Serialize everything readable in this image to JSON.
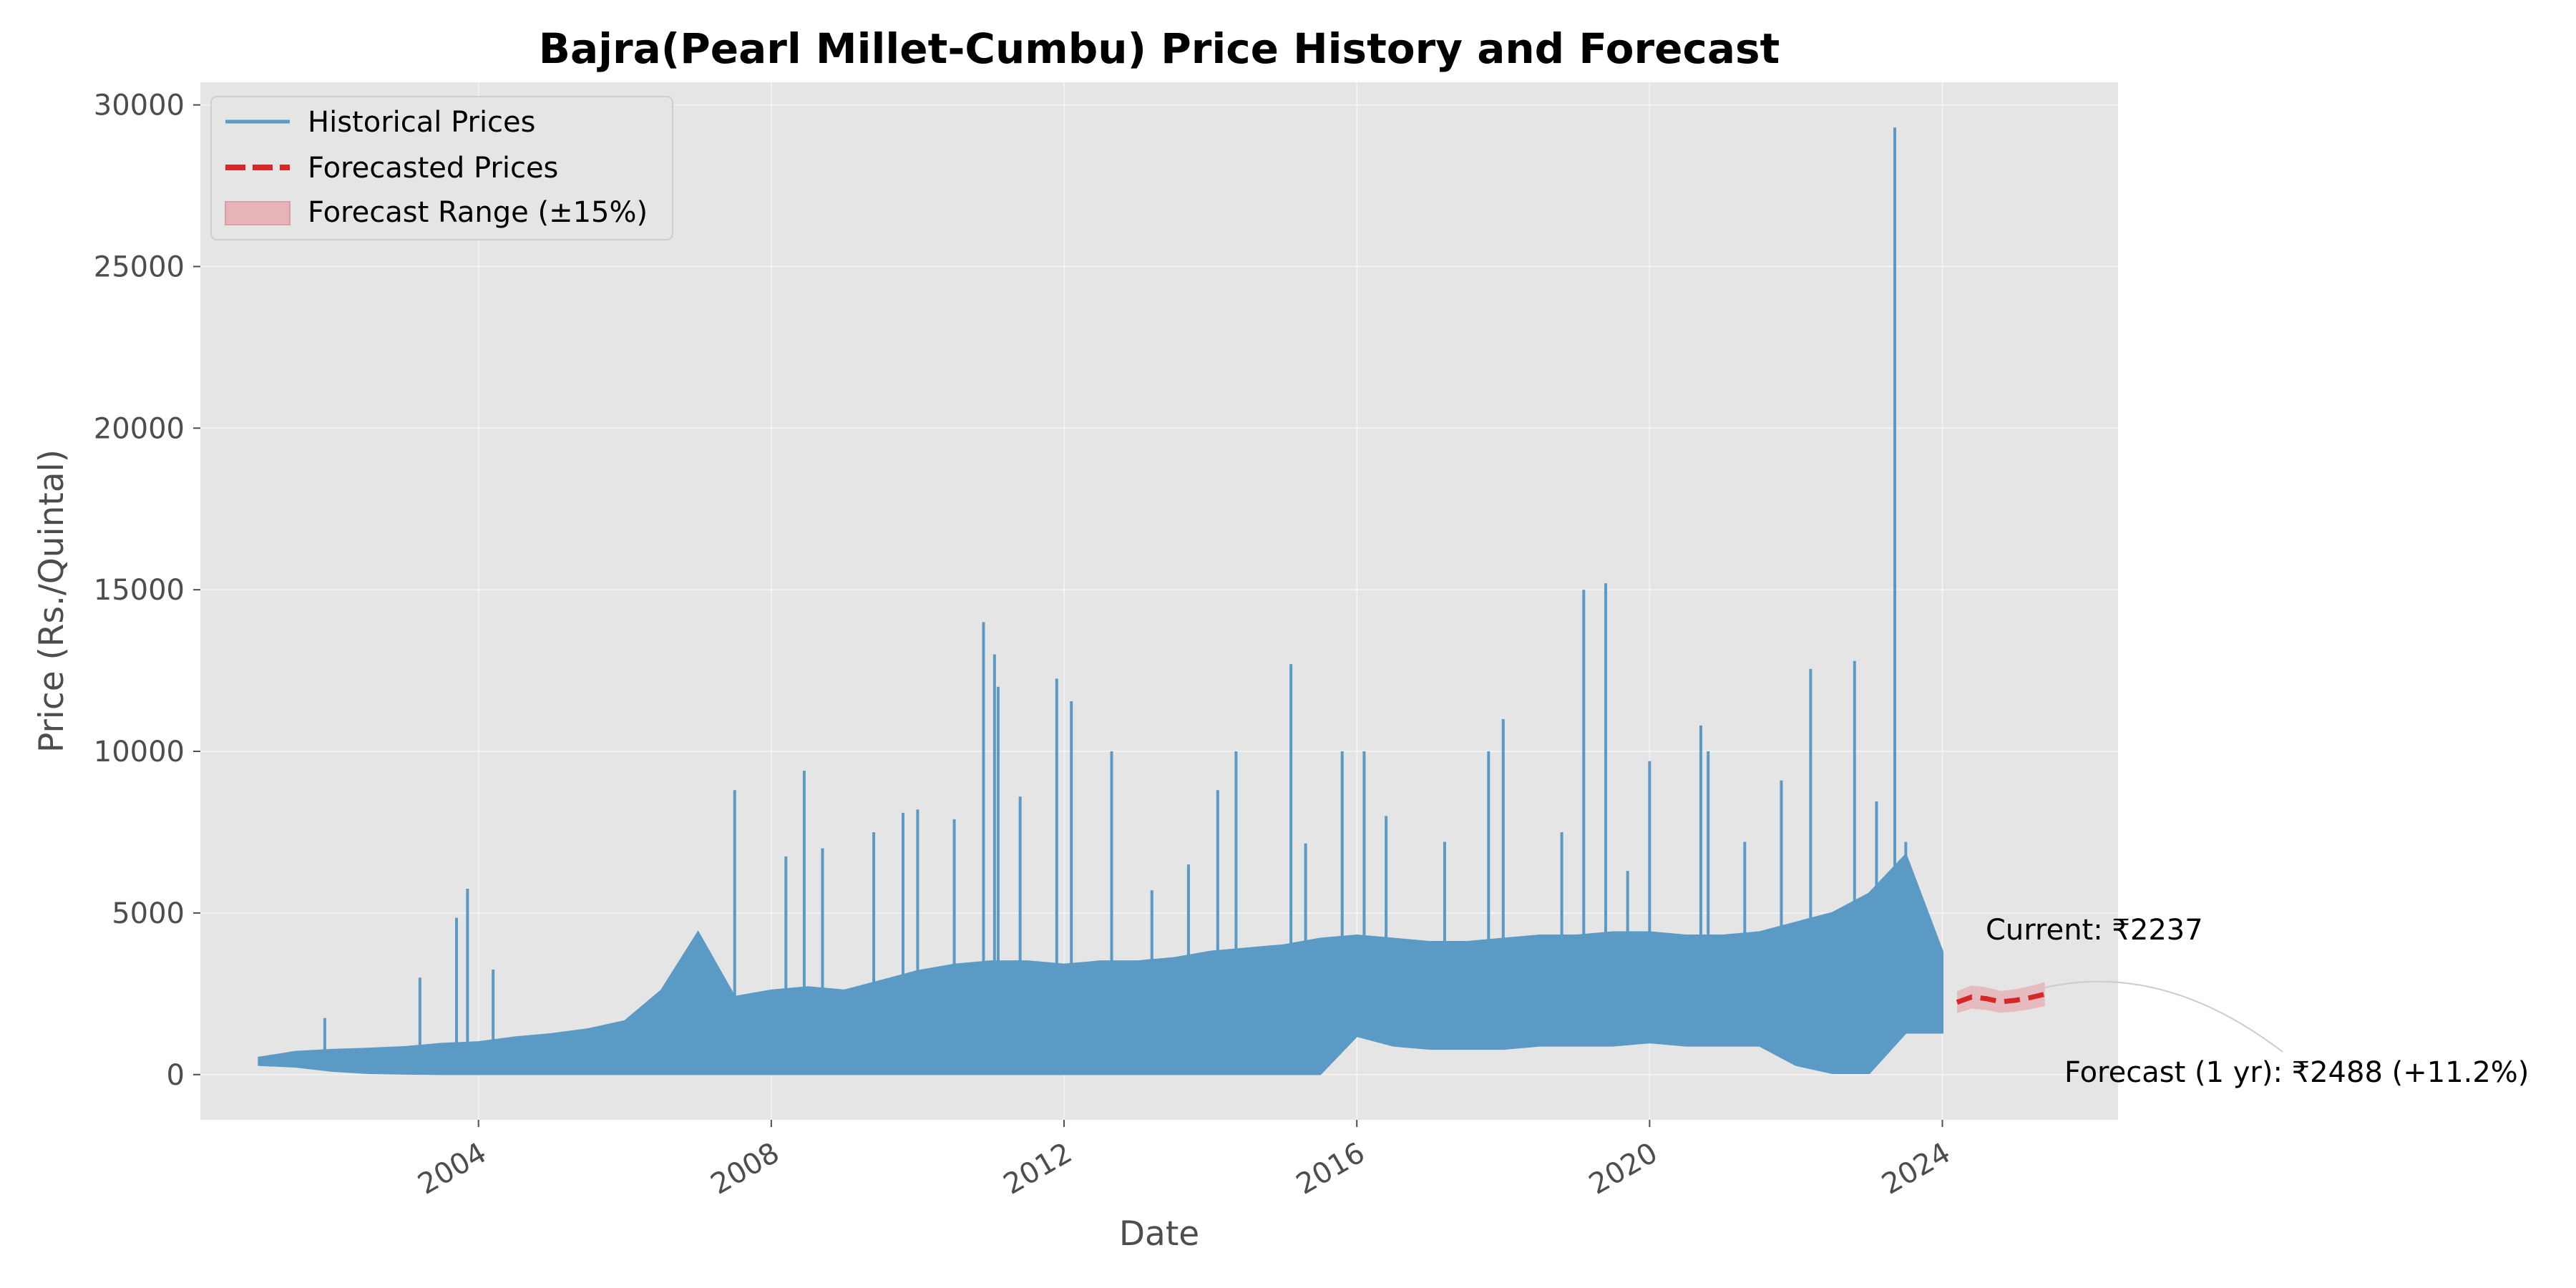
{
  "chart_data": {
    "type": "line",
    "title": "Bajra(Pearl Millet-Cumbu) Price History and Forecast",
    "xlabel": "Date",
    "ylabel": "Price (Rs./Quintal)",
    "xlim": [
      2000.2,
      2026.4
    ],
    "ylim": [
      -1400,
      30700
    ],
    "x_ticks": [
      2004,
      2008,
      2012,
      2016,
      2020,
      2024
    ],
    "x_tick_labels": [
      "2004",
      "2008",
      "2012",
      "2016",
      "2020",
      "2024"
    ],
    "y_ticks": [
      0,
      5000,
      10000,
      15000,
      20000,
      25000,
      30000
    ],
    "y_tick_labels": [
      "0",
      "5000",
      "10000",
      "15000",
      "20000",
      "25000",
      "30000"
    ],
    "grid": true,
    "legend_placement": "upper-left",
    "colors": {
      "historical": "#5b9ac4",
      "forecast": "#d62728",
      "forecast_range": "#e6b4b8",
      "plot_background": "#e5e5e5",
      "tick_text": "#4d4d4d"
    },
    "series": [
      {
        "name": "Historical Prices",
        "style": "solid",
        "band": [
          [
            2001.0,
            300,
            520
          ],
          [
            2001.5,
            250,
            700
          ],
          [
            2002.0,
            120,
            760
          ],
          [
            2002.5,
            50,
            800
          ],
          [
            2003.0,
            30,
            850
          ],
          [
            2003.5,
            20,
            950
          ],
          [
            2004.0,
            20,
            1000
          ],
          [
            2004.5,
            20,
            1150
          ],
          [
            2005.0,
            20,
            1250
          ],
          [
            2005.5,
            20,
            1400
          ],
          [
            2006.0,
            20,
            1650
          ],
          [
            2006.5,
            20,
            2600
          ],
          [
            2007.0,
            20,
            4400
          ],
          [
            2007.5,
            20,
            2400
          ],
          [
            2008.0,
            20,
            2600
          ],
          [
            2008.5,
            20,
            2700
          ],
          [
            2009.0,
            20,
            2600
          ],
          [
            2009.5,
            20,
            2900
          ],
          [
            2010.0,
            20,
            3200
          ],
          [
            2010.5,
            20,
            3400
          ],
          [
            2011.0,
            20,
            3500
          ],
          [
            2011.5,
            20,
            3500
          ],
          [
            2012.0,
            20,
            3400
          ],
          [
            2012.5,
            20,
            3500
          ],
          [
            2013.0,
            20,
            3500
          ],
          [
            2013.5,
            20,
            3600
          ],
          [
            2014.0,
            20,
            3800
          ],
          [
            2014.5,
            20,
            3900
          ],
          [
            2015.0,
            20,
            4000
          ],
          [
            2015.5,
            20,
            4200
          ],
          [
            2016.0,
            1200,
            4300
          ],
          [
            2016.5,
            900,
            4200
          ],
          [
            2017.0,
            800,
            4100
          ],
          [
            2017.5,
            800,
            4100
          ],
          [
            2018.0,
            800,
            4200
          ],
          [
            2018.5,
            900,
            4300
          ],
          [
            2019.0,
            900,
            4300
          ],
          [
            2019.5,
            900,
            4400
          ],
          [
            2020.0,
            1000,
            4400
          ],
          [
            2020.5,
            900,
            4300
          ],
          [
            2021.0,
            900,
            4300
          ],
          [
            2021.5,
            900,
            4400
          ],
          [
            2022.0,
            300,
            4700
          ],
          [
            2022.5,
            50,
            5000
          ],
          [
            2023.0,
            50,
            5600
          ],
          [
            2023.5,
            1300,
            6800
          ],
          [
            2024.0,
            1300,
            3800
          ]
        ],
        "spikes": [
          [
            2001.9,
            1750
          ],
          [
            2003.2,
            3000
          ],
          [
            2003.7,
            4850
          ],
          [
            2003.85,
            5750
          ],
          [
            2004.2,
            3250
          ],
          [
            2006.7,
            2900
          ],
          [
            2007.5,
            8800
          ],
          [
            2008.2,
            6750
          ],
          [
            2008.45,
            9400
          ],
          [
            2008.7,
            7000
          ],
          [
            2009.4,
            7500
          ],
          [
            2009.8,
            8100
          ],
          [
            2010.0,
            8200
          ],
          [
            2010.5,
            7900
          ],
          [
            2010.9,
            14000
          ],
          [
            2011.05,
            13000
          ],
          [
            2011.1,
            12000
          ],
          [
            2011.4,
            8600
          ],
          [
            2011.9,
            12250
          ],
          [
            2012.1,
            11550
          ],
          [
            2012.65,
            10000
          ],
          [
            2013.2,
            5700
          ],
          [
            2013.7,
            6500
          ],
          [
            2014.1,
            8800
          ],
          [
            2014.35,
            10000
          ],
          [
            2015.1,
            12700
          ],
          [
            2015.3,
            7150
          ],
          [
            2015.8,
            10000
          ],
          [
            2016.1,
            10000
          ],
          [
            2016.4,
            8000
          ],
          [
            2017.2,
            7200
          ],
          [
            2017.8,
            10000
          ],
          [
            2018.0,
            11000
          ],
          [
            2018.8,
            7500
          ],
          [
            2019.1,
            15000
          ],
          [
            2019.4,
            15200
          ],
          [
            2019.7,
            6300
          ],
          [
            2020.0,
            9700
          ],
          [
            2020.7,
            10800
          ],
          [
            2020.8,
            10000
          ],
          [
            2021.3,
            7200
          ],
          [
            2021.8,
            9100
          ],
          [
            2022.2,
            12550
          ],
          [
            2022.8,
            12800
          ],
          [
            2023.1,
            8450
          ],
          [
            2023.35,
            29300
          ],
          [
            2023.5,
            7200
          ]
        ]
      },
      {
        "name": "Forecasted Prices",
        "style": "dashed",
        "points": [
          [
            2024.2,
            2237
          ],
          [
            2024.4,
            2400
          ],
          [
            2024.6,
            2350
          ],
          [
            2024.8,
            2250
          ],
          [
            2025.0,
            2300
          ],
          [
            2025.2,
            2380
          ],
          [
            2025.4,
            2488
          ]
        ]
      },
      {
        "name": "Forecast Range (±15%)",
        "style": "band",
        "relative_width": 0.15
      }
    ],
    "annotations": [
      {
        "text": "Current: ₹2237",
        "at": [
          2024.2,
          2237
        ],
        "text_pos": [
          2024.45,
          4300
        ]
      },
      {
        "text": "Forecast (1 yr): ₹2488 (+11.2%)",
        "at": [
          2025.4,
          2488
        ],
        "text_pos": [
          2025.35,
          0
        ]
      }
    ]
  }
}
